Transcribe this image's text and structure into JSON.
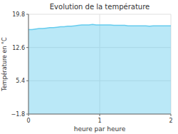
{
  "chart_data": {
    "type": "area",
    "title": "Evolution de la température",
    "x_label": "heure par heure",
    "y_label": "Température en °C",
    "xlim": [
      0,
      2
    ],
    "ylim": [
      -1.8,
      19.8
    ],
    "xticks": [
      0,
      1,
      2
    ],
    "yticks": [
      -1.8,
      5.4,
      12.6,
      19.8
    ],
    "grid": true,
    "color": "#66ccee",
    "x": [
      0.0,
      0.05,
      0.1,
      0.15,
      0.2,
      0.25,
      0.3,
      0.35,
      0.4,
      0.45,
      0.5,
      0.55,
      0.6,
      0.65,
      0.7,
      0.75,
      0.8,
      0.85,
      0.9,
      0.95,
      1.0,
      1.05,
      1.1,
      1.15,
      1.2,
      1.25,
      1.3,
      1.35,
      1.4,
      1.45,
      1.5,
      1.55,
      1.6,
      1.65,
      1.7,
      1.75,
      1.8,
      1.85,
      1.9,
      1.95,
      2.0
    ],
    "values": [
      16.5,
      16.5,
      16.6,
      16.7,
      16.7,
      16.8,
      16.9,
      16.9,
      17.0,
      17.1,
      17.1,
      17.2,
      17.2,
      17.3,
      17.4,
      17.5,
      17.5,
      17.5,
      17.6,
      17.5,
      17.5,
      17.5,
      17.5,
      17.5,
      17.4,
      17.4,
      17.4,
      17.4,
      17.3,
      17.3,
      17.3,
      17.3,
      17.3,
      17.3,
      17.2,
      17.3,
      17.3,
      17.3,
      17.3,
      17.3,
      17.3
    ]
  }
}
